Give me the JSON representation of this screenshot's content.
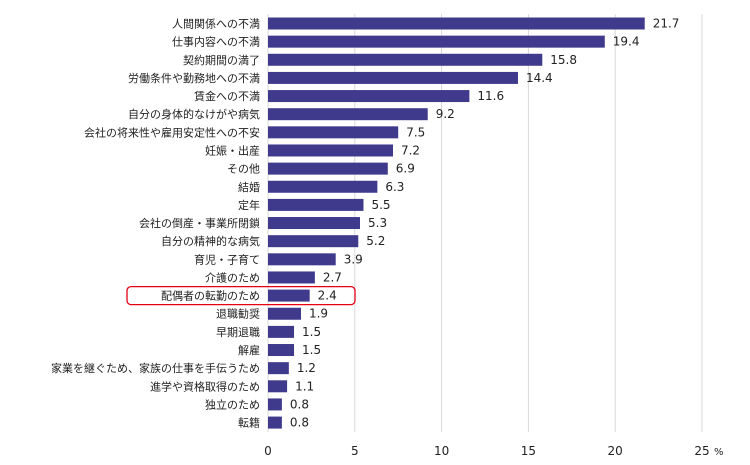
{
  "chart_data": {
    "type": "bar",
    "orientation": "horizontal",
    "title": "",
    "xlabel": "",
    "ylabel": "",
    "unit": "%",
    "xlim": [
      0,
      25
    ],
    "xticks": [
      "0",
      "5",
      "10",
      "15",
      "20",
      "25"
    ],
    "grid": true,
    "legend": "none",
    "bar_color": "#3f3a8c",
    "highlight_color": "#e60012",
    "highlighted_category": "配偶者の転勤のため",
    "categories": [
      "人間関係への不満",
      "仕事内容への不満",
      "契約期間の満了",
      "労働条件や勤務地への不満",
      "賃金への不満",
      "自分の身体的なけがや病気",
      "会社の将来性や雇用安定性への不安",
      "妊娠・出産",
      "その他",
      "結婚",
      "定年",
      "会社の倒産・事業所閉鎖",
      "自分の精神的な病気",
      "育児・子育て",
      "介護のため",
      "配偶者の転勤のため",
      "退職勧奨",
      "早期退職",
      "解雇",
      "家業を継ぐため、家族の仕事を手伝うため",
      "進学や資格取得のため",
      "独立のため",
      "転籍"
    ],
    "values": [
      21.7,
      19.4,
      15.8,
      14.4,
      11.6,
      9.2,
      7.5,
      7.2,
      6.9,
      6.3,
      5.5,
      5.3,
      5.2,
      3.9,
      2.7,
      2.4,
      1.9,
      1.5,
      1.5,
      1.2,
      1.1,
      0.8,
      0.8
    ],
    "value_labels": [
      "21.7",
      "19.4",
      "15.8",
      "14.4",
      "11.6",
      "9.2",
      "7.5",
      "7.2",
      "6.9",
      "6.3",
      "5.5",
      "5.3",
      "5.2",
      "3.9",
      "2.7",
      "2.4",
      "1.9",
      "1.5",
      "1.5",
      "1.2",
      "1.1",
      "0.8",
      "0.8"
    ]
  }
}
